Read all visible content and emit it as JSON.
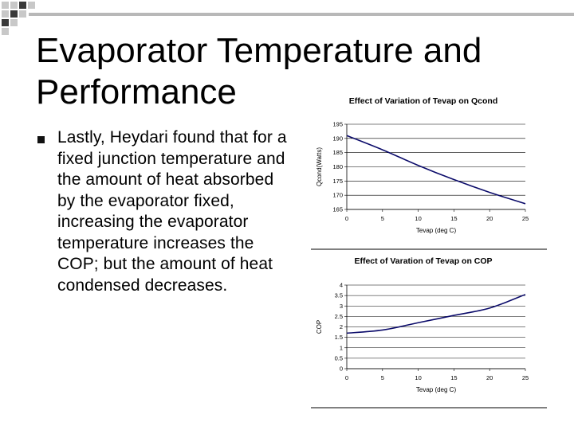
{
  "slide": {
    "title_line1": "Evaporator Temperature and",
    "title_line2": "Performance",
    "bullet": "Lastly, Heydari found that for a fixed junction temperature and the amount of heat absorbed by the evaporator fixed, increasing the evaporator temperature increases the COP; but the amount of heat condensed decreases."
  },
  "colors": {
    "line": "#0b0b6a",
    "grid": "#000000",
    "corner_gray": "#c8c8c8",
    "corner_dark": "#3a3a3a"
  },
  "chart_data": [
    {
      "type": "line",
      "title": "Effect of Variation of Tevap on Qcond",
      "xlabel": "Tevap (deg C)",
      "ylabel": "Qcond(Watts)",
      "x_ticks": [
        "0",
        "5",
        "10",
        "15",
        "20",
        "25"
      ],
      "y_ticks": [
        "165",
        "170",
        "175",
        "180",
        "185",
        "190",
        "195"
      ],
      "xlim": [
        0,
        25
      ],
      "ylim": [
        165,
        195
      ],
      "grid": true,
      "x": [
        0,
        5,
        10,
        15,
        20,
        25
      ],
      "values": [
        191,
        186,
        180.5,
        175.5,
        171,
        167
      ]
    },
    {
      "type": "line",
      "title": "Effect of Varation of Tevap on COP",
      "xlabel": "Tevap (deg C)",
      "ylabel": "COP",
      "x_ticks": [
        "0",
        "5",
        "10",
        "15",
        "20",
        "25"
      ],
      "y_ticks": [
        "0",
        "0.5",
        "1",
        "1.5",
        "2",
        "2.5",
        "3",
        "3.5",
        "4"
      ],
      "xlim": [
        0,
        25
      ],
      "ylim": [
        0,
        4
      ],
      "grid": true,
      "x": [
        0,
        5,
        10,
        15,
        20,
        25
      ],
      "values": [
        1.7,
        1.85,
        2.2,
        2.55,
        2.9,
        3.55
      ]
    }
  ]
}
